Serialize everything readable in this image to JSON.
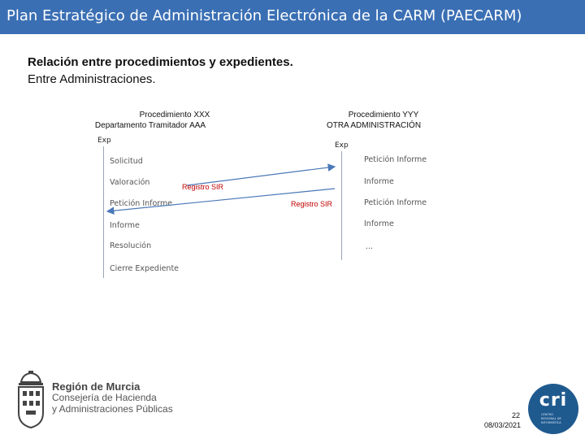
{
  "header": {
    "title": "Plan Estratégico de Administración Electrónica de la CARM (PAECARM)"
  },
  "heading": {
    "line1": "Relación entre procedimientos y expedientes.",
    "line2": "Entre Administraciones."
  },
  "left_proc": {
    "title": "Procedimiento XXX",
    "subtitle": "Departamento Tramitador AAA",
    "exp_label": "Exp",
    "steps": [
      "Solicitud",
      "Valoración",
      "Petición Informe",
      "Informe",
      "Resolución",
      "Cierre Expediente"
    ]
  },
  "right_proc": {
    "title": "Procedimiento YYY",
    "subtitle": "OTRA ADMINISTRACIÓN",
    "exp_label": "Exp",
    "steps": [
      "Petición Informe",
      "Informe",
      "Petición Informe",
      "Informe",
      "..."
    ]
  },
  "arrows": {
    "registro_top": "Registro SIR",
    "registro_bottom": "Registro SIR"
  },
  "colors": {
    "title_bar": "#3a6fb4",
    "arrow": "#4a78b8",
    "registro": "#c00000"
  },
  "logo_left": {
    "line1": "Región de Murcia",
    "line2": "Consejería de Hacienda",
    "line3": "y Administraciones Públicas"
  },
  "logo_right": {
    "letters": "cri",
    "tagline": "CENTRO REGIONAL DE INFORMÁTICA"
  },
  "footer": {
    "page_number": "22",
    "date": "08/03/2021"
  }
}
